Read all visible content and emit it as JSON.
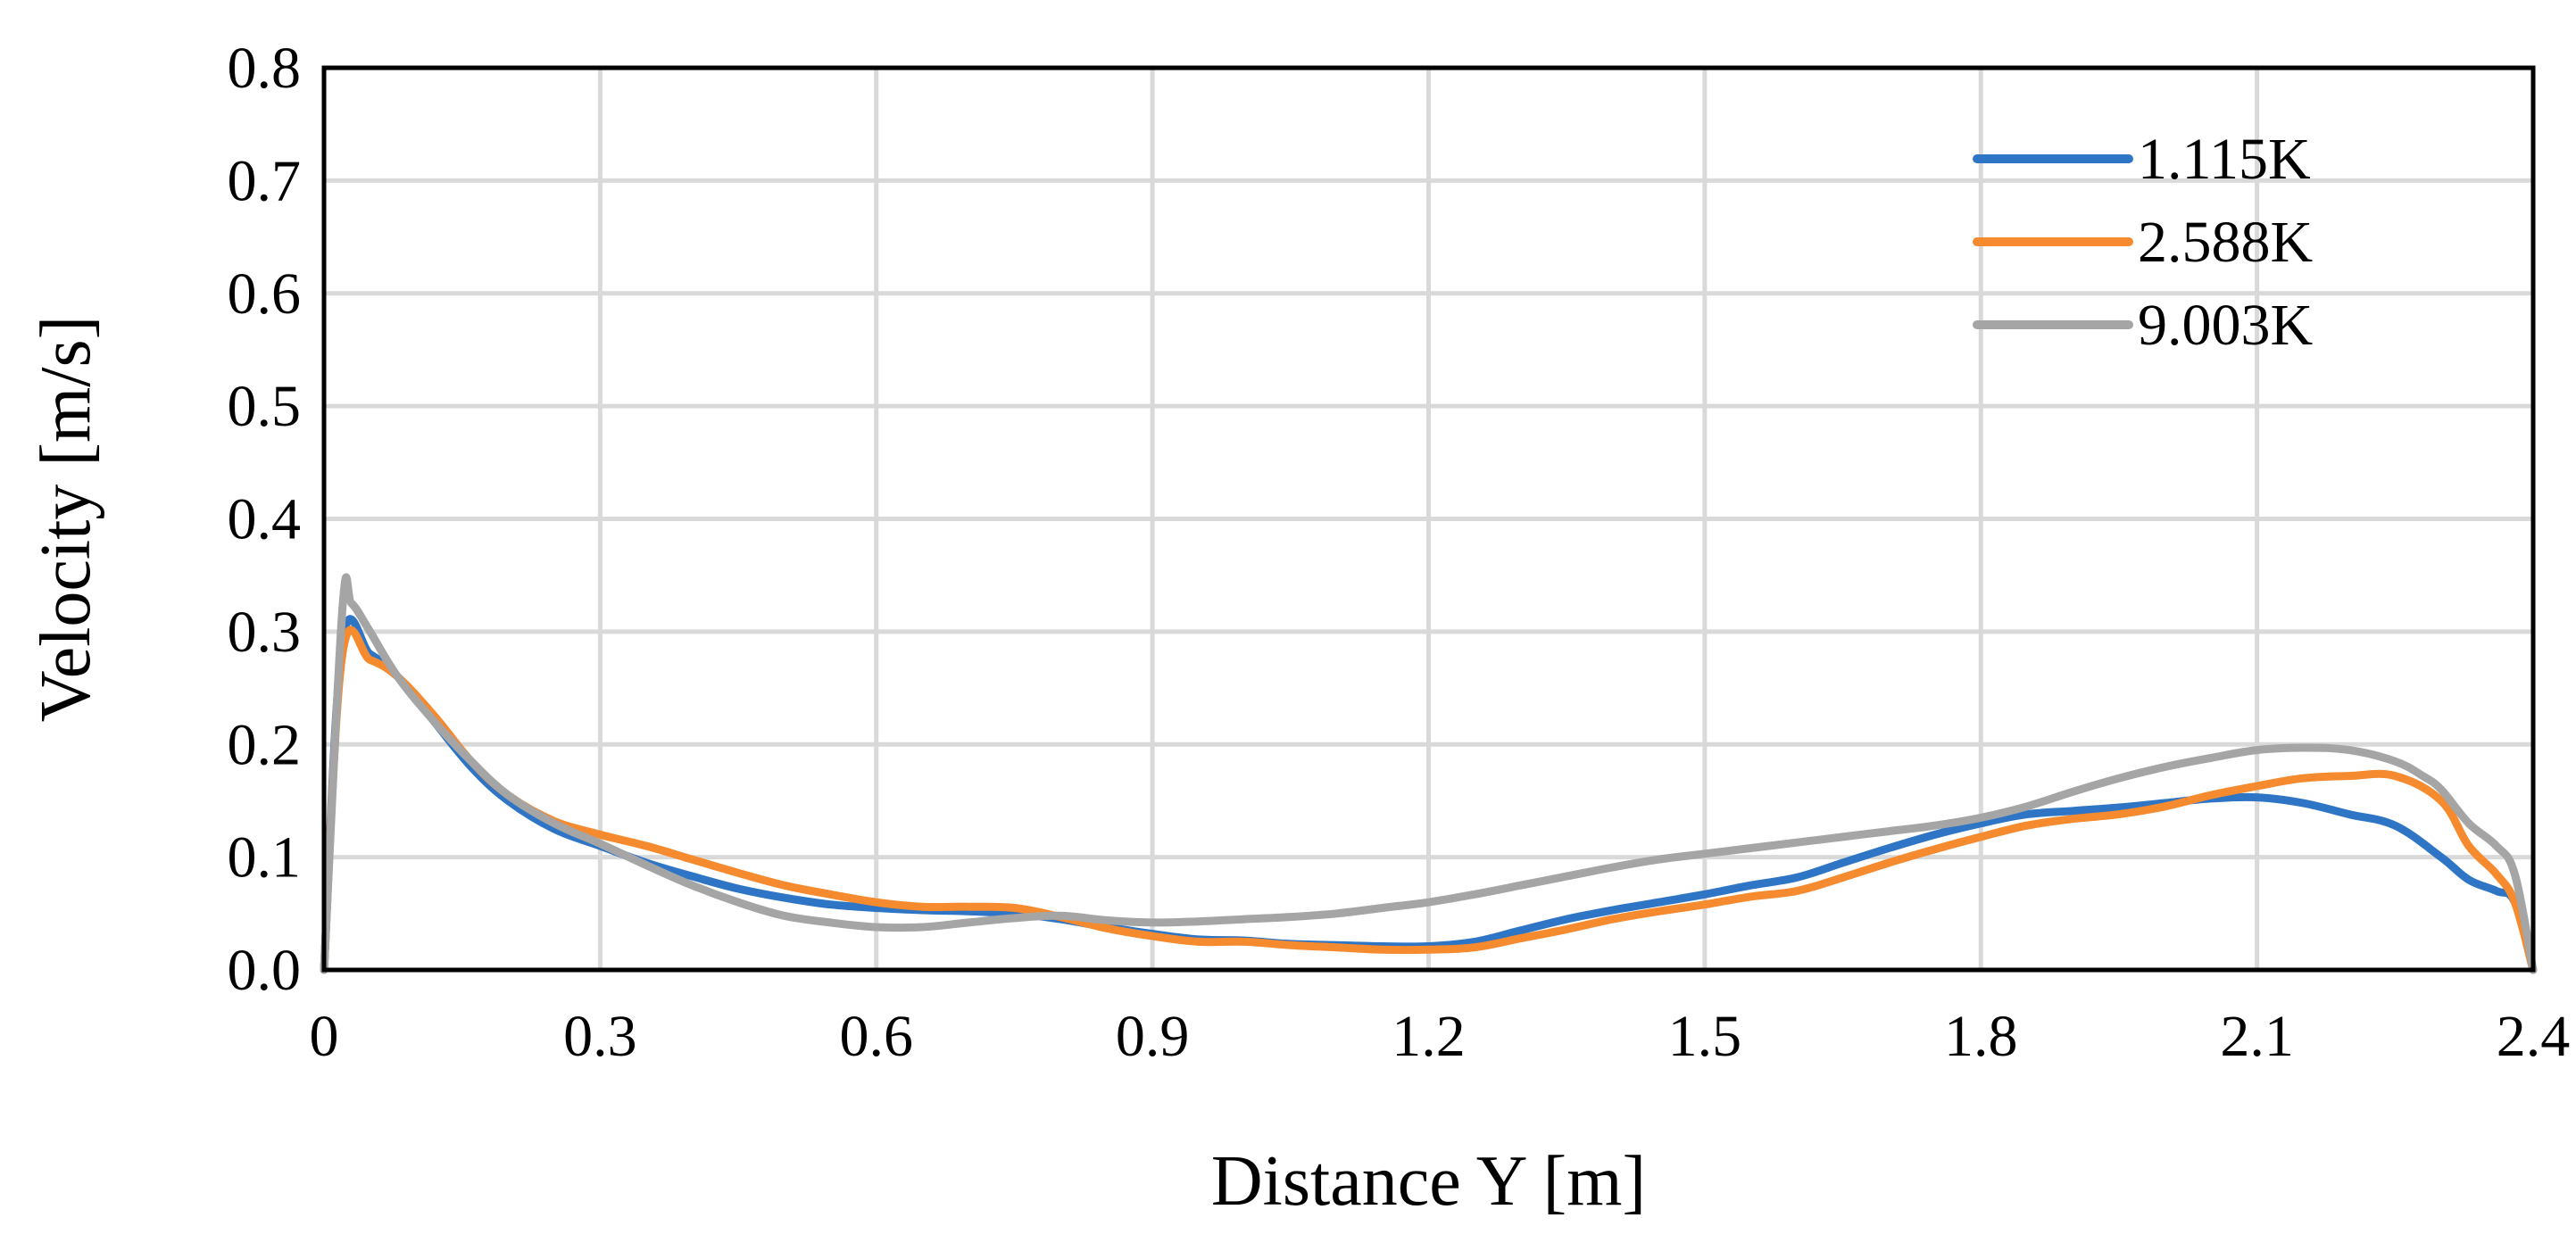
{
  "chart_data": {
    "type": "line",
    "title": "",
    "xlabel": "Distance Y [m]",
    "ylabel": "Velocity [m/s]",
    "xlim": [
      0,
      2.4
    ],
    "ylim": [
      0,
      0.8
    ],
    "xticks": [
      0,
      0.3,
      0.6,
      0.9,
      1.2,
      1.5,
      1.8,
      2.1,
      2.4
    ],
    "xtick_labels": [
      "0",
      "0.3",
      "0.6",
      "0.9",
      "1.2",
      "1.5",
      "1.8",
      "2.1",
      "2.4"
    ],
    "yticks": [
      0,
      0.1,
      0.2,
      0.3,
      0.4,
      0.5,
      0.6,
      0.7,
      0.8
    ],
    "ytick_labels": [
      "0.0",
      "0.1",
      "0.2",
      "0.3",
      "0.4",
      "0.5",
      "0.6",
      "0.7",
      "0.8"
    ],
    "grid": true,
    "legend_position": "top-right",
    "series": [
      {
        "name": "1.115K",
        "color": "#2e75c6",
        "x": [
          0,
          0.02,
          0.05,
          0.08,
          0.12,
          0.16,
          0.2,
          0.25,
          0.3,
          0.35,
          0.4,
          0.45,
          0.5,
          0.55,
          0.6,
          0.65,
          0.7,
          0.75,
          0.8,
          0.85,
          0.9,
          0.95,
          1.0,
          1.05,
          1.1,
          1.15,
          1.2,
          1.25,
          1.3,
          1.35,
          1.4,
          1.45,
          1.5,
          1.55,
          1.6,
          1.65,
          1.7,
          1.75,
          1.8,
          1.85,
          1.9,
          1.95,
          2.0,
          2.05,
          2.1,
          2.15,
          2.2,
          2.25,
          2.3,
          2.33,
          2.36,
          2.38,
          2.4
        ],
        "values": [
          0,
          0.29,
          0.28,
          0.26,
          0.22,
          0.18,
          0.15,
          0.125,
          0.11,
          0.095,
          0.083,
          0.072,
          0.064,
          0.058,
          0.055,
          0.053,
          0.052,
          0.05,
          0.045,
          0.038,
          0.032,
          0.027,
          0.026,
          0.023,
          0.022,
          0.021,
          0.021,
          0.025,
          0.035,
          0.045,
          0.053,
          0.06,
          0.067,
          0.075,
          0.082,
          0.095,
          0.108,
          0.12,
          0.13,
          0.138,
          0.141,
          0.144,
          0.148,
          0.152,
          0.153,
          0.148,
          0.138,
          0.128,
          0.1,
          0.08,
          0.07,
          0.06,
          0
        ]
      },
      {
        "name": "2.588K",
        "color": "#f58a2e",
        "x": [
          0,
          0.02,
          0.05,
          0.08,
          0.12,
          0.16,
          0.2,
          0.25,
          0.3,
          0.35,
          0.4,
          0.45,
          0.5,
          0.55,
          0.6,
          0.65,
          0.7,
          0.75,
          0.8,
          0.85,
          0.9,
          0.95,
          1.0,
          1.05,
          1.1,
          1.15,
          1.2,
          1.25,
          1.3,
          1.35,
          1.4,
          1.45,
          1.5,
          1.55,
          1.6,
          1.65,
          1.7,
          1.75,
          1.8,
          1.85,
          1.9,
          1.95,
          2.0,
          2.05,
          2.1,
          2.15,
          2.2,
          2.25,
          2.3,
          2.33,
          2.36,
          2.38,
          2.4
        ],
        "values": [
          0,
          0.28,
          0.275,
          0.26,
          0.225,
          0.185,
          0.155,
          0.132,
          0.12,
          0.11,
          0.098,
          0.086,
          0.075,
          0.067,
          0.06,
          0.056,
          0.056,
          0.055,
          0.047,
          0.037,
          0.03,
          0.025,
          0.025,
          0.022,
          0.02,
          0.018,
          0.018,
          0.02,
          0.028,
          0.036,
          0.045,
          0.052,
          0.058,
          0.065,
          0.07,
          0.082,
          0.095,
          0.107,
          0.118,
          0.128,
          0.134,
          0.138,
          0.145,
          0.155,
          0.163,
          0.17,
          0.172,
          0.172,
          0.15,
          0.11,
          0.085,
          0.06,
          0
        ]
      },
      {
        "name": "9.003K",
        "color": "#a5a5a5",
        "x": [
          0,
          0.02,
          0.03,
          0.05,
          0.08,
          0.12,
          0.16,
          0.2,
          0.25,
          0.3,
          0.35,
          0.4,
          0.45,
          0.5,
          0.55,
          0.6,
          0.65,
          0.7,
          0.75,
          0.8,
          0.85,
          0.9,
          0.95,
          1.0,
          1.05,
          1.1,
          1.15,
          1.2,
          1.25,
          1.3,
          1.35,
          1.4,
          1.45,
          1.5,
          1.55,
          1.6,
          1.65,
          1.7,
          1.75,
          1.8,
          1.85,
          1.9,
          1.95,
          2.0,
          2.05,
          2.1,
          2.15,
          2.2,
          2.25,
          2.28,
          2.3,
          2.33,
          2.36,
          2.38,
          2.4
        ],
        "values": [
          0,
          0.32,
          0.325,
          0.3,
          0.26,
          0.22,
          0.185,
          0.155,
          0.13,
          0.112,
          0.093,
          0.075,
          0.06,
          0.048,
          0.042,
          0.038,
          0.038,
          0.042,
          0.046,
          0.048,
          0.044,
          0.042,
          0.043,
          0.045,
          0.047,
          0.05,
          0.055,
          0.06,
          0.067,
          0.075,
          0.083,
          0.091,
          0.098,
          0.103,
          0.108,
          0.113,
          0.118,
          0.123,
          0.128,
          0.135,
          0.145,
          0.158,
          0.17,
          0.18,
          0.188,
          0.195,
          0.197,
          0.195,
          0.185,
          0.172,
          0.16,
          0.13,
          0.11,
          0.085,
          0
        ]
      }
    ]
  }
}
